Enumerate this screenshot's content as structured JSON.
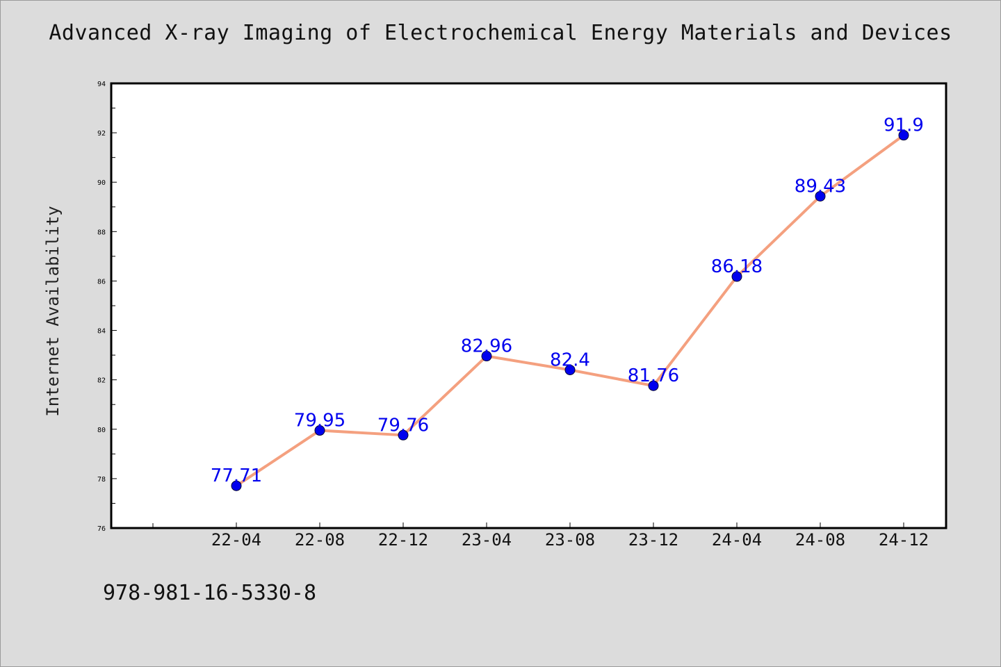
{
  "chart_data": {
    "type": "line",
    "title": "Advanced X-ray Imaging of Electrochemical Energy Materials and Devices",
    "xlabel": "",
    "ylabel": "Internet Availability",
    "categories": [
      "22-04",
      "22-08",
      "22-12",
      "23-04",
      "23-08",
      "23-12",
      "24-04",
      "24-08",
      "24-12"
    ],
    "series": [
      {
        "values": [
          77.71,
          79.95,
          79.76,
          82.96,
          82.4,
          81.76,
          86.18,
          89.43,
          91.9
        ]
      }
    ],
    "data_labels": [
      "77.71",
      "79.95",
      "79.76",
      "82.96",
      "82.4",
      "81.76",
      "86.18",
      "89.43",
      "91.9"
    ],
    "ylim": [
      76,
      94
    ],
    "y_ticks": [
      76,
      78,
      80,
      82,
      84,
      86,
      88,
      90,
      92,
      94
    ],
    "grid": false,
    "legend": "none",
    "colors": {
      "line": "#f4a07f",
      "marker": "#0000ee",
      "label": "#0000ee",
      "background": "#dcdcdc",
      "plot_bg": "#ffffff"
    }
  },
  "footer_text": "978-981-16-5330-8"
}
